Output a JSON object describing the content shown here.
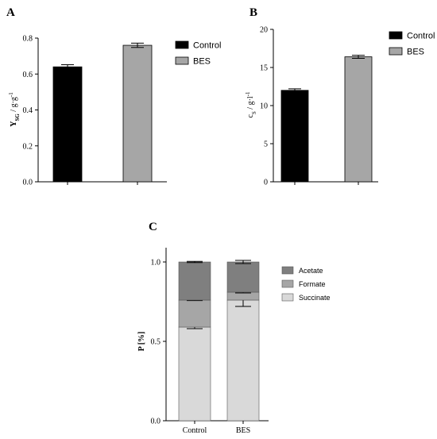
{
  "chart_data": [
    {
      "panel": "A",
      "type": "bar",
      "categories": [
        "Control",
        "BES"
      ],
      "values": [
        0.64,
        0.76
      ],
      "errors": [
        0.012,
        0.012
      ],
      "colors": [
        "#000000",
        "#a6a6a6"
      ],
      "ylabel_main": "Y",
      "ylabel_sub": "SG",
      "ylabel_rest": " / g·g",
      "ylabel_sup": "-1",
      "ylim": [
        0,
        0.8
      ],
      "yticks": [
        "0.0",
        "0.2",
        "0.4",
        "0.6",
        "0.8"
      ],
      "legend": [
        "Control",
        "BES"
      ],
      "legend_placement": "top-right"
    },
    {
      "panel": "B",
      "type": "bar",
      "categories": [
        "Control",
        "BES"
      ],
      "values": [
        12.0,
        16.4
      ],
      "errors": [
        0.2,
        0.2
      ],
      "colors": [
        "#000000",
        "#a6a6a6"
      ],
      "ylabel_main": "c",
      "ylabel_sub": "S",
      "ylabel_rest": " / g·l",
      "ylabel_sup": "-1",
      "ylim": [
        0,
        20
      ],
      "yticks": [
        "0",
        "5",
        "10",
        "15",
        "20"
      ],
      "legend": [
        "Control",
        "BES"
      ],
      "legend_placement": "top-right"
    },
    {
      "panel": "C",
      "type": "bar",
      "stacked": true,
      "categories": [
        "Control",
        "BES"
      ],
      "series": [
        {
          "name": "Succinate",
          "values": [
            0.59,
            0.76
          ],
          "errors": [
            0.01,
            0.04
          ],
          "color": "#d9d9d9"
        },
        {
          "name": "Formate",
          "values": [
            0.17,
            0.05
          ],
          "errors": [
            0.003,
            0.005
          ],
          "color": "#a6a6a6"
        },
        {
          "name": "Acetate",
          "values": [
            0.24,
            0.19
          ],
          "errors": [
            0.004,
            0.01
          ],
          "color": "#7f7f7f"
        }
      ],
      "legend_order": [
        "Acetate",
        "Formate",
        "Succinate"
      ],
      "ylabel": "P [%]",
      "ylim": [
        0,
        1.0
      ],
      "yticks": [
        "0.0",
        "0.5",
        "1.0"
      ],
      "legend_placement": "right"
    }
  ]
}
